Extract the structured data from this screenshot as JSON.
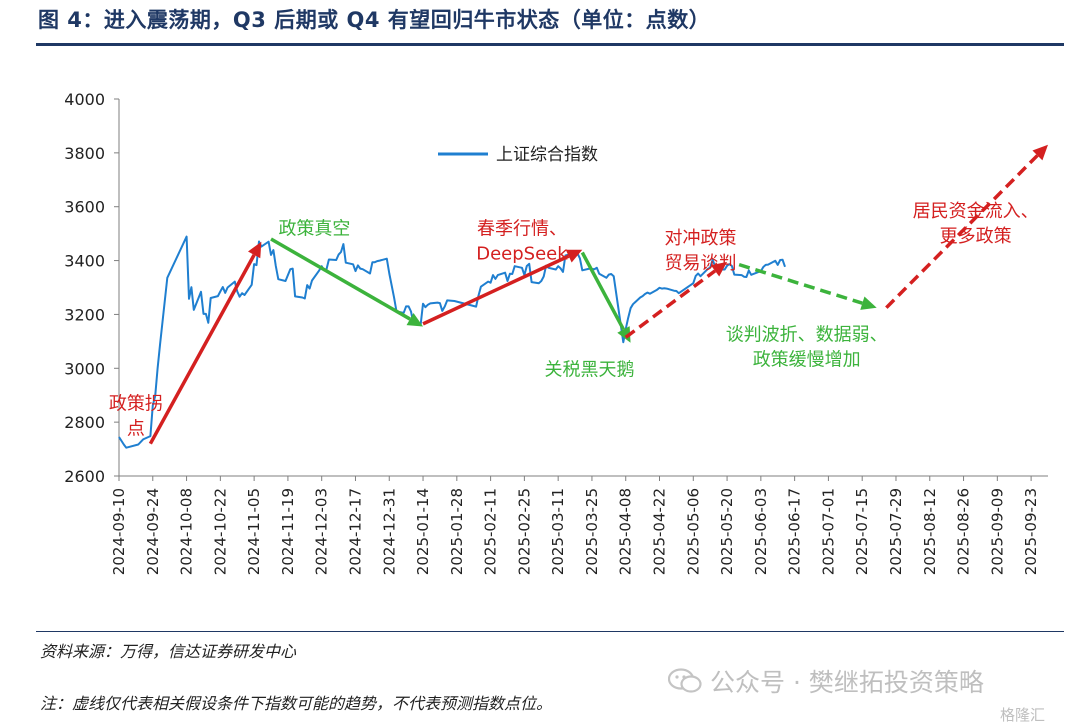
{
  "title": "图 4：进入震荡期，Q3 后期或 Q4 有望回归牛市状态（单位：点数）",
  "source": "资料来源：万得，信达证券研发中心",
  "footnote": "注：虚线仅代表相关假设条件下指数可能的趋势，不代表预测指数点位。",
  "watermark": "公众号 · 樊继拓投资策略",
  "corner_mark": "格隆汇",
  "colors": {
    "title": "#1f3864",
    "series": "#1f7fd0",
    "red": "#d42020",
    "green": "#3cb33c"
  },
  "chart_data": {
    "type": "line",
    "ylim": [
      2600,
      4000
    ],
    "yticks": [
      2600,
      2800,
      3000,
      3200,
      3400,
      3600,
      3800,
      4000
    ],
    "x_start": "2024-09-10",
    "x_end": "2025-09-30",
    "xticks": [
      "2024-09-10",
      "2024-09-24",
      "2024-10-08",
      "2024-10-22",
      "2024-11-05",
      "2024-11-19",
      "2024-12-03",
      "2024-12-17",
      "2024-12-31",
      "2025-01-14",
      "2025-01-28",
      "2025-02-11",
      "2025-02-25",
      "2025-03-11",
      "2025-03-25",
      "2025-04-08",
      "2025-04-22",
      "2025-05-06",
      "2025-05-20",
      "2025-06-03",
      "2025-06-17",
      "2025-07-01",
      "2025-07-15",
      "2025-07-29",
      "2025-08-12",
      "2025-08-26",
      "2025-09-09",
      "2025-09-23"
    ],
    "legend": {
      "position": "top-center"
    },
    "series": [
      {
        "name": "上证综合指数",
        "points": [
          [
            "2024-09-10",
            2745
          ],
          [
            "2024-09-12",
            2717
          ],
          [
            "2024-09-13",
            2705
          ],
          [
            "2024-09-18",
            2717
          ],
          [
            "2024-09-20",
            2736
          ],
          [
            "2024-09-23",
            2748
          ],
          [
            "2024-09-24",
            2863
          ],
          [
            "2024-09-25",
            2897
          ],
          [
            "2024-09-26",
            3000
          ],
          [
            "2024-09-27",
            3087
          ],
          [
            "2024-09-30",
            3336
          ],
          [
            "2024-10-08",
            3489
          ],
          [
            "2024-10-09",
            3258
          ],
          [
            "2024-10-10",
            3301
          ],
          [
            "2024-10-11",
            3217
          ],
          [
            "2024-10-14",
            3284
          ],
          [
            "2024-10-15",
            3202
          ],
          [
            "2024-10-16",
            3202
          ],
          [
            "2024-10-17",
            3169
          ],
          [
            "2024-10-18",
            3261
          ],
          [
            "2024-10-21",
            3268
          ],
          [
            "2024-10-22",
            3285
          ],
          [
            "2024-10-23",
            3302
          ],
          [
            "2024-10-24",
            3280
          ],
          [
            "2024-10-25",
            3300
          ],
          [
            "2024-10-28",
            3322
          ],
          [
            "2024-10-29",
            3286
          ],
          [
            "2024-10-30",
            3266
          ],
          [
            "2024-10-31",
            3279
          ],
          [
            "2024-11-01",
            3272
          ],
          [
            "2024-11-04",
            3310
          ],
          [
            "2024-11-05",
            3387
          ],
          [
            "2024-11-06",
            3383
          ],
          [
            "2024-11-07",
            3471
          ],
          [
            "2024-11-08",
            3452
          ],
          [
            "2024-11-11",
            3470
          ],
          [
            "2024-11-12",
            3421
          ],
          [
            "2024-11-13",
            3439
          ],
          [
            "2024-11-14",
            3380
          ],
          [
            "2024-11-15",
            3331
          ],
          [
            "2024-11-18",
            3324
          ],
          [
            "2024-11-19",
            3346
          ],
          [
            "2024-11-20",
            3368
          ],
          [
            "2024-11-21",
            3370
          ],
          [
            "2024-11-22",
            3267
          ],
          [
            "2024-11-25",
            3263
          ],
          [
            "2024-11-26",
            3259
          ],
          [
            "2024-11-27",
            3309
          ],
          [
            "2024-11-28",
            3296
          ],
          [
            "2024-11-29",
            3326
          ],
          [
            "2024-12-02",
            3364
          ],
          [
            "2024-12-03",
            3379
          ],
          [
            "2024-12-04",
            3364
          ],
          [
            "2024-12-05",
            3368
          ],
          [
            "2024-12-06",
            3404
          ],
          [
            "2024-12-09",
            3402
          ],
          [
            "2024-12-10",
            3422
          ],
          [
            "2024-12-11",
            3432
          ],
          [
            "2024-12-12",
            3461
          ],
          [
            "2024-12-13",
            3392
          ],
          [
            "2024-12-16",
            3386
          ],
          [
            "2024-12-17",
            3361
          ],
          [
            "2024-12-18",
            3382
          ],
          [
            "2024-12-19",
            3370
          ],
          [
            "2024-12-20",
            3368
          ],
          [
            "2024-12-23",
            3352
          ],
          [
            "2024-12-24",
            3394
          ],
          [
            "2024-12-25",
            3394
          ],
          [
            "2024-12-26",
            3398
          ],
          [
            "2024-12-27",
            3400
          ],
          [
            "2024-12-30",
            3407
          ],
          [
            "2024-12-31",
            3352
          ],
          [
            "2025-01-02",
            3262
          ],
          [
            "2025-01-03",
            3211
          ],
          [
            "2025-01-06",
            3206
          ],
          [
            "2025-01-07",
            3230
          ],
          [
            "2025-01-08",
            3230
          ],
          [
            "2025-01-09",
            3211
          ],
          [
            "2025-01-10",
            3168
          ],
          [
            "2025-01-13",
            3160
          ],
          [
            "2025-01-14",
            3240
          ],
          [
            "2025-01-15",
            3227
          ],
          [
            "2025-01-16",
            3236
          ],
          [
            "2025-01-17",
            3241
          ],
          [
            "2025-01-20",
            3244
          ],
          [
            "2025-01-21",
            3242
          ],
          [
            "2025-01-22",
            3213
          ],
          [
            "2025-01-23",
            3230
          ],
          [
            "2025-01-24",
            3252
          ],
          [
            "2025-01-27",
            3250
          ],
          [
            "2025-02-05",
            3229
          ],
          [
            "2025-02-06",
            3270
          ],
          [
            "2025-02-07",
            3303
          ],
          [
            "2025-02-10",
            3322
          ],
          [
            "2025-02-11",
            3318
          ],
          [
            "2025-02-12",
            3346
          ],
          [
            "2025-02-13",
            3332
          ],
          [
            "2025-02-14",
            3346
          ],
          [
            "2025-02-17",
            3355
          ],
          [
            "2025-02-18",
            3324
          ],
          [
            "2025-02-19",
            3351
          ],
          [
            "2025-02-20",
            3350
          ],
          [
            "2025-02-21",
            3379
          ],
          [
            "2025-02-24",
            3373
          ],
          [
            "2025-02-25",
            3346
          ],
          [
            "2025-02-26",
            3380
          ],
          [
            "2025-02-27",
            3388
          ],
          [
            "2025-02-28",
            3320
          ],
          [
            "2025-03-03",
            3316
          ],
          [
            "2025-03-04",
            3324
          ],
          [
            "2025-03-05",
            3341
          ],
          [
            "2025-03-06",
            3381
          ],
          [
            "2025-03-07",
            3373
          ],
          [
            "2025-03-10",
            3367
          ],
          [
            "2025-03-11",
            3379
          ],
          [
            "2025-03-12",
            3371
          ],
          [
            "2025-03-13",
            3358
          ],
          [
            "2025-03-14",
            3419
          ],
          [
            "2025-03-17",
            3426
          ],
          [
            "2025-03-18",
            3429
          ],
          [
            "2025-03-19",
            3427
          ],
          [
            "2025-03-20",
            3408
          ],
          [
            "2025-03-21",
            3364
          ],
          [
            "2025-03-24",
            3370
          ],
          [
            "2025-03-25",
            3369
          ],
          [
            "2025-03-26",
            3368
          ],
          [
            "2025-03-27",
            3373
          ],
          [
            "2025-03-28",
            3351
          ],
          [
            "2025-03-31",
            3336
          ],
          [
            "2025-04-01",
            3348
          ],
          [
            "2025-04-02",
            3350
          ],
          [
            "2025-04-03",
            3342
          ],
          [
            "2025-04-07",
            3097
          ],
          [
            "2025-04-08",
            3145
          ],
          [
            "2025-04-09",
            3186
          ],
          [
            "2025-04-10",
            3223
          ],
          [
            "2025-04-11",
            3238
          ],
          [
            "2025-04-14",
            3263
          ],
          [
            "2025-04-15",
            3268
          ],
          [
            "2025-04-16",
            3276
          ],
          [
            "2025-04-17",
            3281
          ],
          [
            "2025-04-18",
            3277
          ],
          [
            "2025-04-21",
            3292
          ],
          [
            "2025-04-22",
            3299
          ],
          [
            "2025-04-23",
            3296
          ],
          [
            "2025-04-24",
            3297
          ],
          [
            "2025-04-25",
            3296
          ],
          [
            "2025-04-28",
            3288
          ],
          [
            "2025-04-29",
            3287
          ],
          [
            "2025-04-30",
            3279
          ],
          [
            "2025-05-06",
            3316
          ],
          [
            "2025-05-07",
            3343
          ],
          [
            "2025-05-08",
            3352
          ],
          [
            "2025-05-09",
            3342
          ],
          [
            "2025-05-12",
            3369
          ],
          [
            "2025-05-13",
            3374
          ],
          [
            "2025-05-14",
            3403
          ],
          [
            "2025-05-15",
            3380
          ],
          [
            "2025-05-16",
            3367
          ],
          [
            "2025-05-19",
            3367
          ],
          [
            "2025-05-20",
            3381
          ],
          [
            "2025-05-21",
            3387
          ],
          [
            "2025-05-22",
            3380
          ],
          [
            "2025-05-23",
            3348
          ],
          [
            "2025-05-26",
            3346
          ],
          [
            "2025-05-27",
            3340
          ],
          [
            "2025-05-28",
            3339
          ],
          [
            "2025-05-29",
            3363
          ],
          [
            "2025-05-30",
            3347
          ],
          [
            "2025-06-03",
            3361
          ],
          [
            "2025-06-04",
            3376
          ],
          [
            "2025-06-05",
            3384
          ],
          [
            "2025-06-06",
            3385
          ],
          [
            "2025-06-09",
            3399
          ],
          [
            "2025-06-10",
            3384
          ],
          [
            "2025-06-11",
            3402
          ],
          [
            "2025-06-12",
            3403
          ],
          [
            "2025-06-13",
            3377
          ]
        ]
      }
    ],
    "trend_arrows": [
      {
        "color": "red",
        "style": "solid",
        "from": [
          "2024-09-23",
          2720
        ],
        "to": [
          "2024-11-08",
          3470
        ]
      },
      {
        "color": "green",
        "style": "solid",
        "from": [
          "2024-11-12",
          3480
        ],
        "to": [
          "2025-01-14",
          3155
        ]
      },
      {
        "color": "red",
        "style": "solid",
        "from": [
          "2025-01-14",
          3165
        ],
        "to": [
          "2025-03-21",
          3440
        ]
      },
      {
        "color": "green",
        "style": "solid",
        "from": [
          "2025-03-21",
          3430
        ],
        "to": [
          "2025-04-10",
          3095
        ]
      },
      {
        "color": "red",
        "style": "dashed",
        "from": [
          "2025-04-08",
          3115
        ],
        "to": [
          "2025-05-20",
          3395
        ]
      },
      {
        "color": "green",
        "style": "dashed",
        "from": [
          "2025-05-25",
          3385
        ],
        "to": [
          "2025-07-21",
          3225
        ]
      },
      {
        "color": "red",
        "style": "dashed",
        "from": [
          "2025-07-25",
          3225
        ],
        "to": [
          "2025-09-30",
          3830
        ]
      }
    ],
    "annotations": [
      {
        "lines": [
          "政策拐",
          "点"
        ],
        "color": "red",
        "at": [
          "2024-09-17",
          2870
        ]
      },
      {
        "lines": [
          "政策真空"
        ],
        "color": "green",
        "at": [
          "2024-11-30",
          3520
        ]
      },
      {
        "lines": [
          "春季行情、",
          "DeepSeek"
        ],
        "color": "red",
        "at": [
          "2025-02-24",
          3520
        ]
      },
      {
        "lines": [
          "关税黑天鹅"
        ],
        "color": "green",
        "at": [
          "2025-03-24",
          2995
        ]
      },
      {
        "lines": [
          "对冲政策",
          "贸易谈判"
        ],
        "color": "red",
        "at": [
          "2025-05-09",
          3483
        ]
      },
      {
        "lines": [
          "谈判波折、数据弱、",
          "政策缓慢增加"
        ],
        "color": "green",
        "at": [
          "2025-06-22",
          3125
        ]
      },
      {
        "lines": [
          "居民资金流入、",
          "更多政策"
        ],
        "color": "red",
        "at": [
          "2025-08-31",
          3585
        ]
      }
    ]
  }
}
